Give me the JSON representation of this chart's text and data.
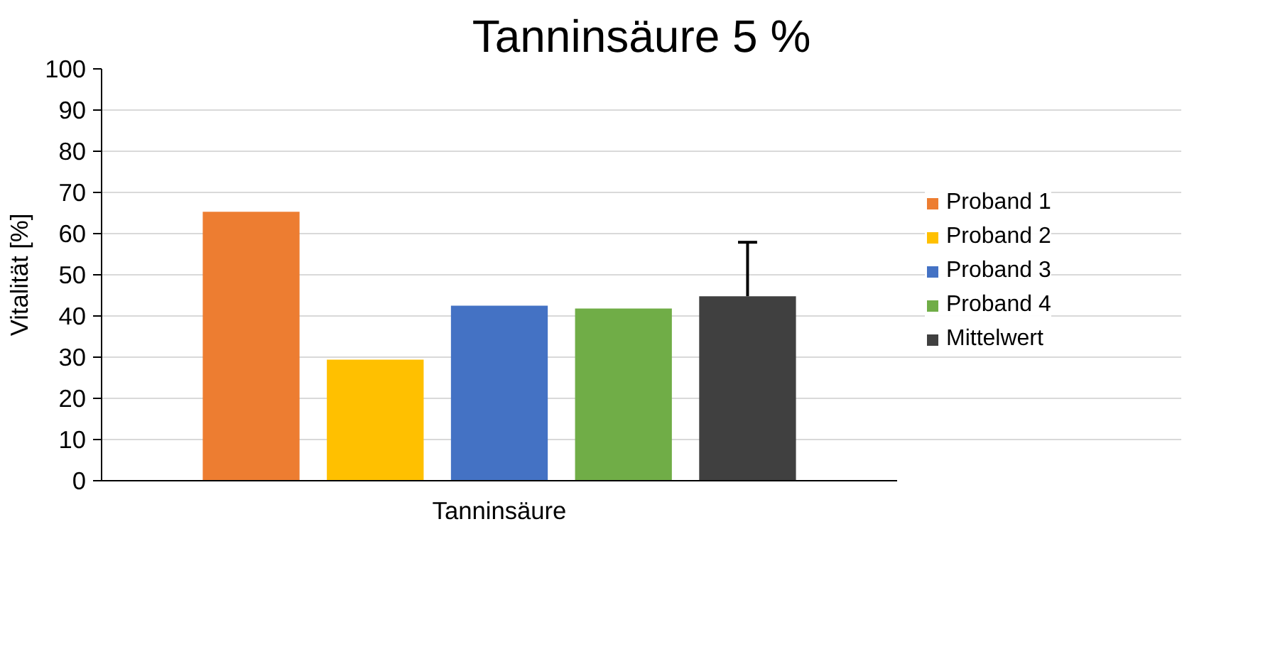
{
  "chart_data": {
    "type": "bar",
    "title": "Tanninsäure 5 %",
    "ylabel": "Vitalität [%]",
    "categories": [
      "Tanninsäure"
    ],
    "series": [
      {
        "name": "Proband 1",
        "color": "#ed7d31",
        "values": [
          65.3
        ]
      },
      {
        "name": "Proband 2",
        "color": "#ffc000",
        "values": [
          29.4
        ]
      },
      {
        "name": "Proband 3",
        "color": "#4472c4",
        "values": [
          42.5
        ]
      },
      {
        "name": "Proband 4",
        "color": "#70ad47",
        "values": [
          41.8
        ]
      },
      {
        "name": "Mittelwert",
        "color": "#404040",
        "values": [
          44.8
        ],
        "errors": [
          [
            44.8,
            57.9
          ]
        ]
      }
    ],
    "ylim": [
      0,
      100
    ],
    "yticks": [
      0,
      10,
      20,
      30,
      40,
      50,
      60,
      70,
      80,
      90,
      100
    ],
    "grid": "y",
    "legend": "right"
  }
}
